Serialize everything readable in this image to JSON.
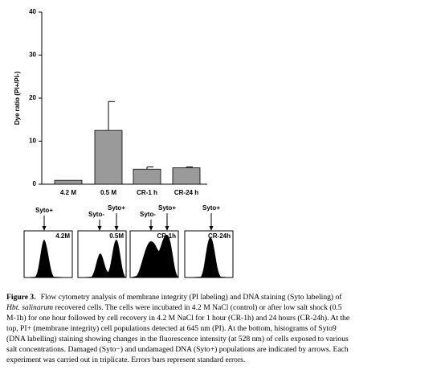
{
  "chart_data": {
    "type": "bar",
    "y_label": "Dye ratio (PI+/PI-)",
    "categories": [
      "4.2 M",
      "0.5 M",
      "CR-1 h",
      "CR-24 h"
    ],
    "values": [
      0.9,
      12.5,
      3.5,
      3.8
    ],
    "errors": [
      0,
      6.7,
      0.5,
      0.2
    ],
    "color": "#9a9a9a",
    "ylim": [
      0,
      40
    ],
    "yticks": [
      0,
      10,
      20,
      30,
      40
    ]
  },
  "histograms": [
    {
      "label": "4.2M",
      "arrows": [
        "Syto+"
      ]
    },
    {
      "label": "0.5M",
      "arrows": [
        "Syto-",
        "Syto+"
      ]
    },
    {
      "label": "CR-1h",
      "arrows": [
        "Syto-",
        "Syto+"
      ]
    },
    {
      "label": "CR-24h",
      "arrows": [
        "Syto+"
      ]
    }
  ],
  "caption": {
    "label": "Figure 3.",
    "first": "Flow cytometry analysis of membrane integrity (PI labeling) and DNA staining (Syto labeling) of",
    "species": "Hbt. salinarum",
    "second": " recovered cells. The cells were incubated in 4.2 M NaCl (control) or after low salt shock (0.5",
    "lines": [
      "M-1h) for one hour followed by cell recovery in 4.2 M NaCl for 1 hour (CR-1h) and 24 hours (CR-24h). At the",
      "top, PI+ (membrane integrity) cell populations detected at 645 nm (PI). At the bottom, histograms of Syto9",
      "(DNA labelling) staining showing changes in the fluorescence intensity (at 528 nm) of cells exposed to various",
      "salt concentrations. Damaged (Syto−) and undamaged DNA (Syto+) populations are indicated by arrows. Each",
      "experiment was carried out in triplicate. Errors bars represent standard errors."
    ]
  }
}
